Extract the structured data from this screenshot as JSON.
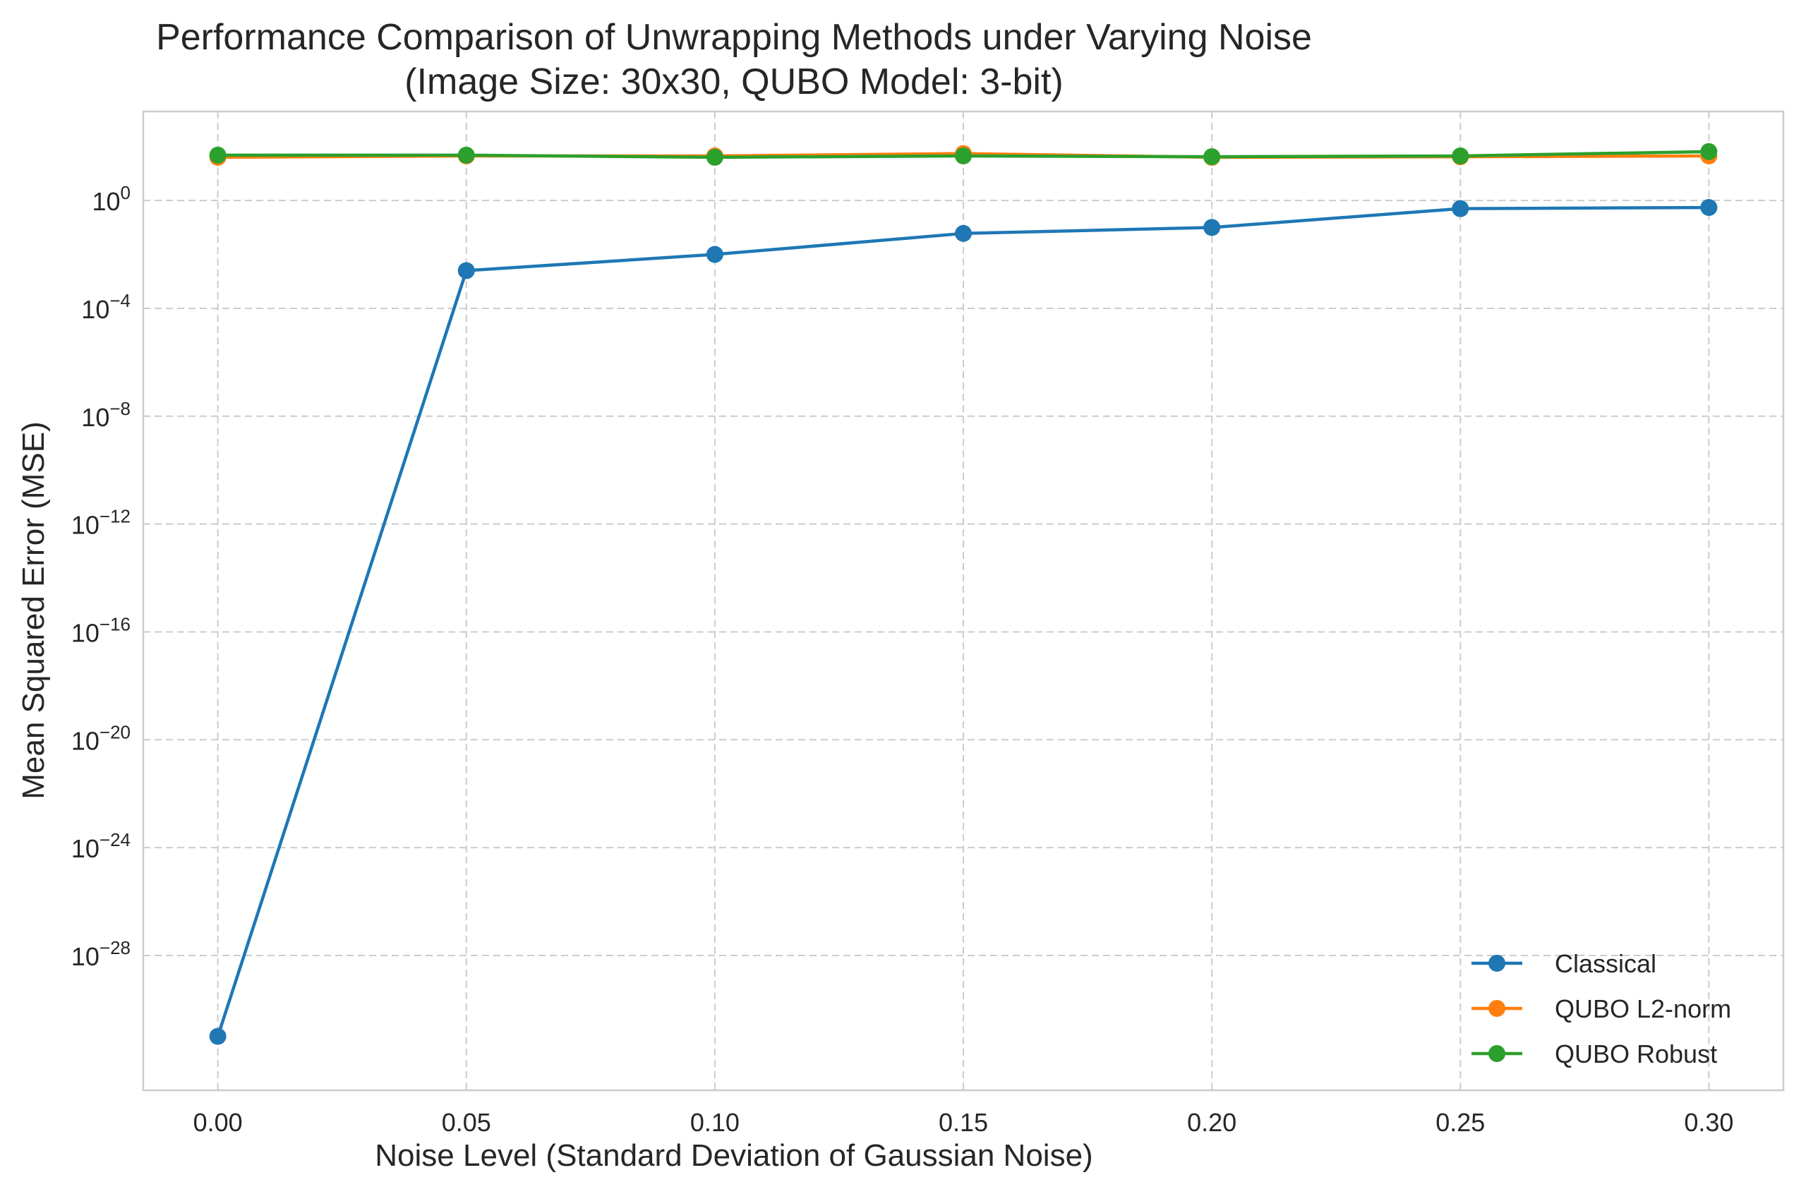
{
  "chart_data": {
    "type": "line",
    "title": "Performance Comparison of Unwrapping Methods under Varying Noise",
    "subtitle": "(Image Size: 30x30, QUBO Model: 3-bit)",
    "xlabel": "Noise Level (Standard Deviation of Gaussian Noise)",
    "ylabel": "Mean Squared Error (MSE)",
    "x": [
      0.0,
      0.05,
      0.1,
      0.15,
      0.2,
      0.25,
      0.3
    ],
    "x_tick_labels": [
      "0.00",
      "0.05",
      "0.10",
      "0.15",
      "0.20",
      "0.25",
      "0.30"
    ],
    "xlim": [
      -0.015,
      0.315
    ],
    "y_scale": "log",
    "ylim": [
      1e-33,
      2000.0
    ],
    "y_tick_base": "10",
    "y_tick_exponents": [
      "0",
      "−4",
      "−8",
      "−12",
      "−16",
      "−20",
      "−24",
      "−28"
    ],
    "y_tick_values": [
      0,
      -4,
      -8,
      -12,
      -16,
      -20,
      -24,
      -28
    ],
    "grid": true,
    "legend_position": "lower-right",
    "series": [
      {
        "name": "Classical",
        "color": "#1f77b4",
        "marker": "circle",
        "values": [
          1e-31,
          0.0025,
          0.01,
          0.06,
          0.1,
          0.5,
          0.55
        ]
      },
      {
        "name": "QUBO L2-norm",
        "color": "#ff7f0e",
        "marker": "circle",
        "values": [
          40,
          45,
          45,
          55,
          40,
          42,
          45
        ]
      },
      {
        "name": "QUBO Robust",
        "color": "#2ca02c",
        "marker": "circle",
        "values": [
          48,
          48,
          40,
          45,
          42,
          45,
          65
        ]
      }
    ]
  }
}
